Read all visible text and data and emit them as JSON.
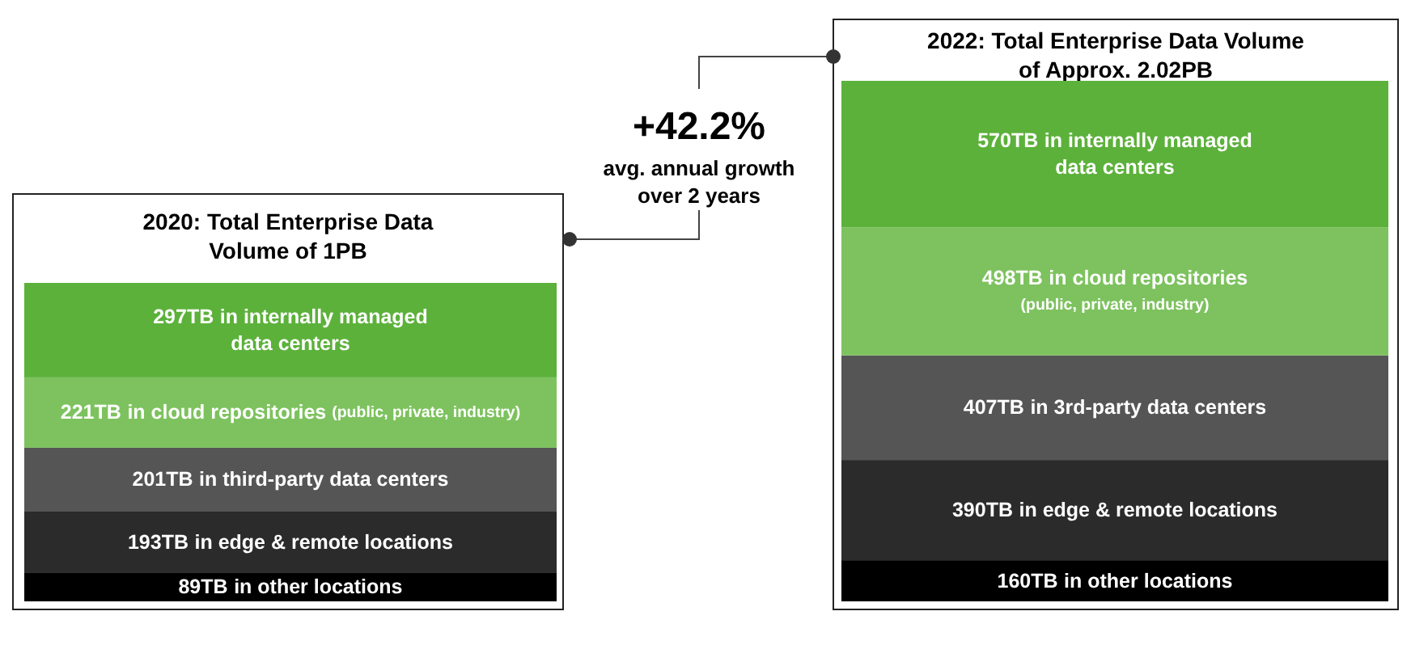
{
  "chart_data": [
    {
      "type": "bar",
      "title": "2020: Total Enterprise Data\nVolume of 1PB",
      "categories": [
        null
      ],
      "stacked": true,
      "series": [
        {
          "name": "in other locations",
          "color": "#000000",
          "values": [
            89
          ],
          "value_labels": [
            "89TB"
          ]
        },
        {
          "name": "in edge & remote locations",
          "color": "#2b2b2b",
          "values": [
            193
          ],
          "value_labels": [
            "193TB"
          ]
        },
        {
          "name": "in third-party data centers",
          "color": "#555555",
          "values": [
            201
          ],
          "value_labels": [
            "201TB"
          ]
        },
        {
          "name": "in cloud repositories (public, private, industry)",
          "color": "#7dc25e",
          "values": [
            221
          ],
          "value_labels": [
            "221TB"
          ]
        },
        {
          "name": "in internally managed\ndata centers",
          "color": "#5cb13b",
          "values": [
            297
          ],
          "value_labels": [
            "297TB"
          ]
        }
      ]
    },
    {
      "type": "bar",
      "title": "2022: Total Enterprise Data Volume\nof Approx. 2.02PB",
      "categories": [
        null
      ],
      "stacked": true,
      "annotations": [
        "+42.2%",
        "avg. annual growth\nover 2 years"
      ],
      "series": [
        {
          "name": "in other locations",
          "color": "#000000",
          "values": [
            160
          ],
          "value_labels": [
            "160TB"
          ]
        },
        {
          "name": "in edge & remote locations",
          "color": "#2b2b2b",
          "values": [
            390
          ],
          "value_labels": [
            "390TB"
          ]
        },
        {
          "name": "in 3rd-party data centers",
          "color": "#555555",
          "values": [
            407
          ],
          "value_labels": [
            "407TB"
          ]
        },
        {
          "name": "in cloud repositories\n(public, private, industry)",
          "color": "#7dc25e",
          "values": [
            498
          ],
          "value_labels": [
            "498TB"
          ]
        },
        {
          "name": "in internally managed\ndata centers",
          "color": "#5cb13b",
          "values": [
            570
          ],
          "value_labels": [
            "570TB"
          ]
        }
      ]
    }
  ]
}
